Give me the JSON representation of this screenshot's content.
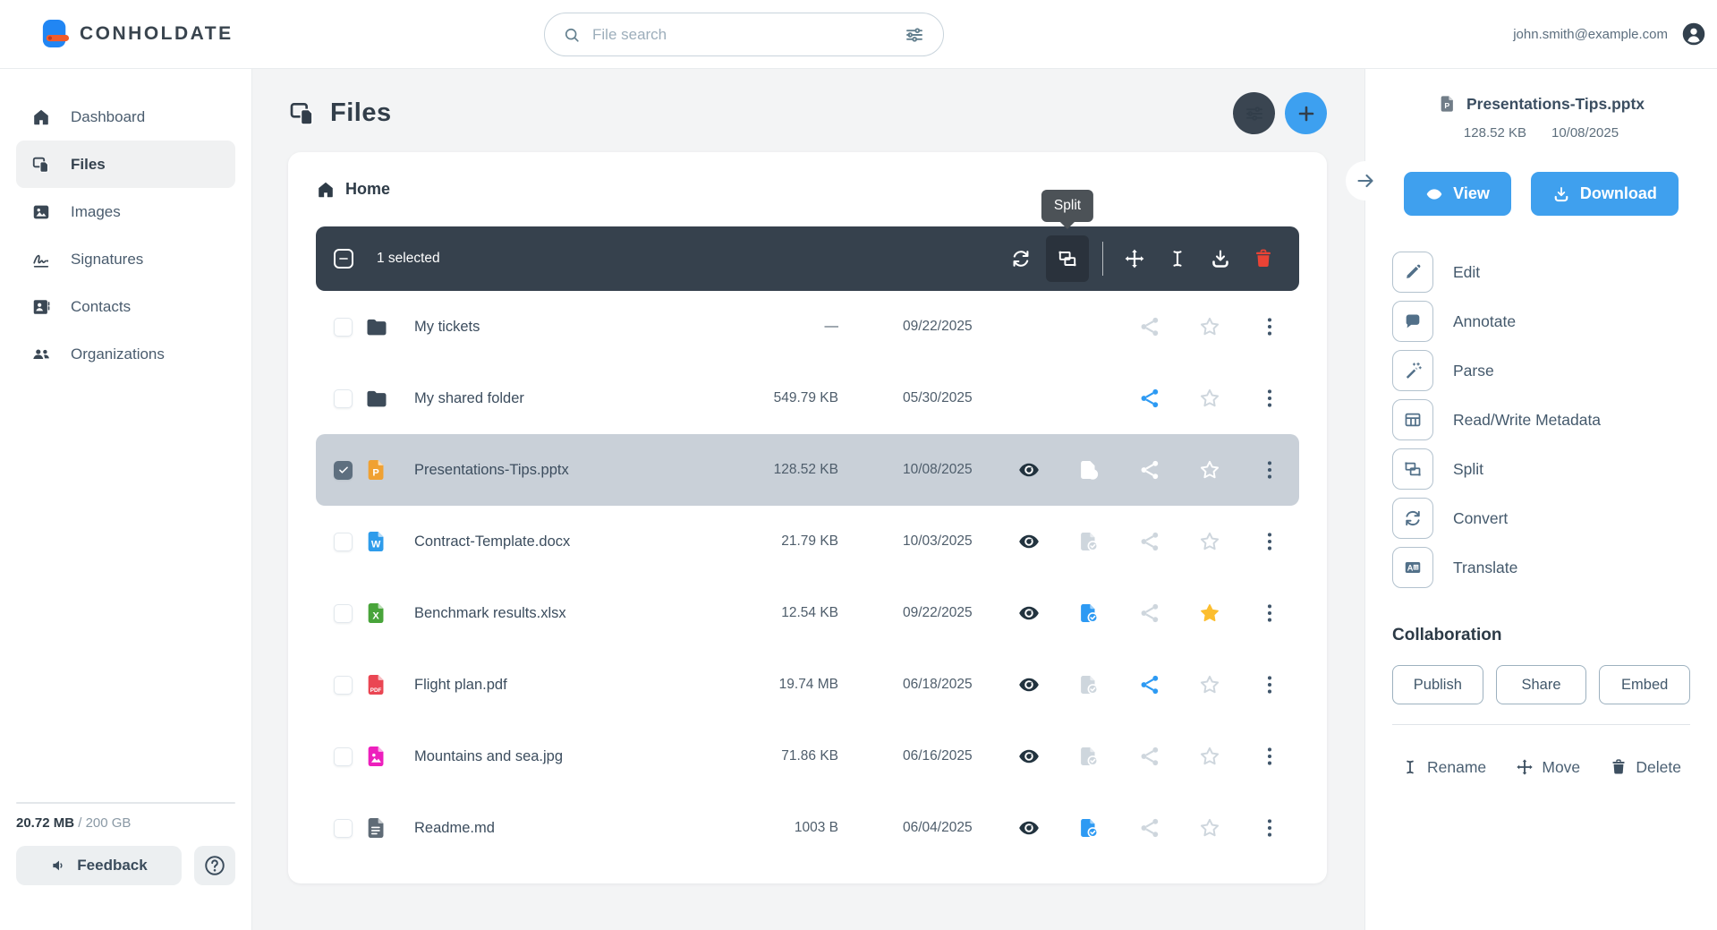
{
  "topbar": {
    "brand": "CONHOLDATE",
    "search_placeholder": "File search",
    "user_email": "john.smith@example.com"
  },
  "colors": {
    "accent_blue": "#2d9af3",
    "toolbar_dark": "#36414d",
    "star_yellow": "#fcbe2f",
    "danger_red": "#ea4335",
    "logo_blue": "#2186f3",
    "logo_orange": "#f25c2a"
  },
  "sidebar": {
    "items": [
      {
        "label": "Dashboard",
        "icon": "home-icon",
        "active": false
      },
      {
        "label": "Files",
        "icon": "files-icon",
        "active": true
      },
      {
        "label": "Images",
        "icon": "image-icon",
        "active": false
      },
      {
        "label": "Signatures",
        "icon": "signature-icon",
        "active": false
      },
      {
        "label": "Contacts",
        "icon": "contact-icon",
        "active": false
      },
      {
        "label": "Organizations",
        "icon": "organizations-icon",
        "active": false
      }
    ],
    "storage": {
      "used": "20.72 MB",
      "separator": "/",
      "total": "200 GB"
    },
    "feedback_label": "Feedback"
  },
  "main": {
    "title": "Files",
    "breadcrumb": "Home",
    "selection_toolbar": {
      "selected_text": "1 selected",
      "tooltip": "Split",
      "buttons": [
        {
          "name": "convert",
          "icon": "refresh-icon"
        },
        {
          "name": "split",
          "icon": "split-icon",
          "active": true
        },
        {
          "name": "divider"
        },
        {
          "name": "move",
          "icon": "move-icon"
        },
        {
          "name": "rename",
          "icon": "ibeam-icon"
        },
        {
          "name": "download",
          "icon": "download-icon"
        },
        {
          "name": "delete",
          "icon": "trash-icon",
          "danger": true
        }
      ]
    },
    "files": [
      {
        "name": "My tickets",
        "type": "folder",
        "size": "—",
        "date": "09/22/2025",
        "selected": false,
        "actions": {
          "eye": false,
          "filecheck": null,
          "share": "muted",
          "star": "muted"
        }
      },
      {
        "name": "My shared folder",
        "type": "folder",
        "size": "549.79 KB",
        "date": "05/30/2025",
        "selected": false,
        "actions": {
          "eye": false,
          "filecheck": null,
          "share": "blue",
          "star": "muted"
        }
      },
      {
        "name": "Presentations-Tips.pptx",
        "type": "pptx",
        "size": "128.52 KB",
        "date": "10/08/2025",
        "selected": true,
        "actions": {
          "eye": true,
          "filecheck": "white",
          "share": "white",
          "star": "white"
        }
      },
      {
        "name": "Contract-Template.docx",
        "type": "docx",
        "size": "21.79 KB",
        "date": "10/03/2025",
        "selected": false,
        "actions": {
          "eye": true,
          "filecheck": "muted",
          "share": "muted",
          "star": "muted"
        }
      },
      {
        "name": "Benchmark results.xlsx",
        "type": "xlsx",
        "size": "12.54 KB",
        "date": "09/22/2025",
        "selected": false,
        "actions": {
          "eye": true,
          "filecheck": "blue",
          "share": "muted",
          "star": "yellow"
        }
      },
      {
        "name": "Flight plan.pdf",
        "type": "pdf",
        "size": "19.74 MB",
        "date": "06/18/2025",
        "selected": false,
        "actions": {
          "eye": true,
          "filecheck": "muted",
          "share": "blue",
          "star": "muted"
        }
      },
      {
        "name": "Mountains and sea.jpg",
        "type": "jpg",
        "size": "71.86 KB",
        "date": "06/16/2025",
        "selected": false,
        "actions": {
          "eye": true,
          "filecheck": "muted",
          "share": "muted",
          "star": "muted"
        }
      },
      {
        "name": "Readme.md",
        "type": "md",
        "size": "1003 B",
        "date": "06/04/2025",
        "selected": false,
        "actions": {
          "eye": true,
          "filecheck": "blue",
          "share": "muted",
          "star": "muted"
        }
      }
    ]
  },
  "details": {
    "file_name": "Presentations-Tips.pptx",
    "file_type": "pptx-gray",
    "size": "128.52 KB",
    "date": "10/08/2025",
    "primary_buttons": [
      {
        "label": "View",
        "icon": "eye-icon"
      },
      {
        "label": "Download",
        "icon": "download-icon"
      }
    ],
    "actions": [
      {
        "label": "Edit",
        "icon": "pencil-icon"
      },
      {
        "label": "Annotate",
        "icon": "comment-icon"
      },
      {
        "label": "Parse",
        "icon": "wand-icon"
      },
      {
        "label": "Read/Write Metadata",
        "icon": "table-icon"
      },
      {
        "label": "Split",
        "icon": "split-icon"
      },
      {
        "label": "Convert",
        "icon": "refresh-icon"
      },
      {
        "label": "Translate",
        "icon": "translate-icon"
      }
    ],
    "collaboration": {
      "heading": "Collaboration",
      "buttons": [
        "Publish",
        "Share",
        "Embed"
      ]
    },
    "footer_links": [
      {
        "label": "Rename",
        "icon": "ibeam-icon"
      },
      {
        "label": "Move",
        "icon": "move-icon"
      },
      {
        "label": "Delete",
        "icon": "trash-icon"
      }
    ]
  }
}
